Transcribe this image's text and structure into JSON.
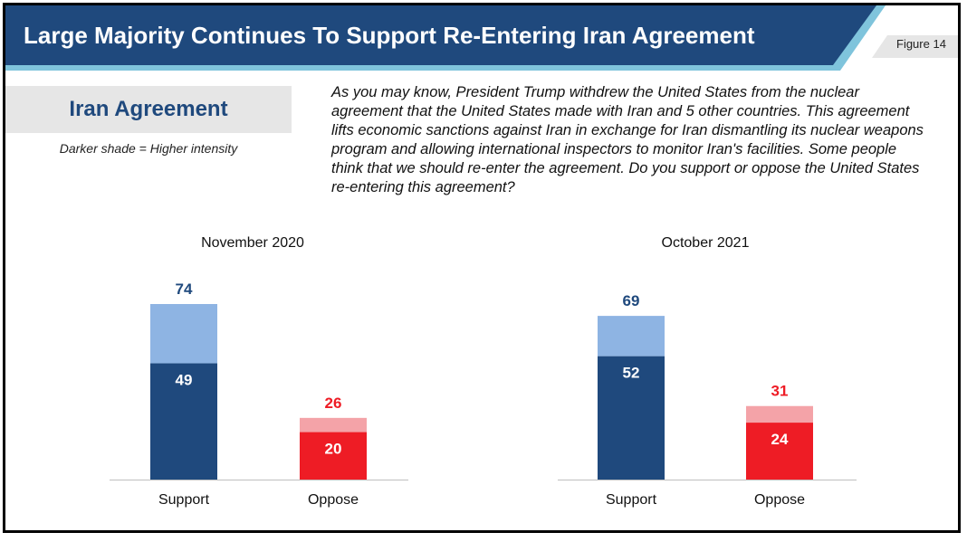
{
  "header": {
    "title": "Large Majority Continues To Support Re-Entering Iran Agreement",
    "figure_label": "Figure 14"
  },
  "sidebar": {
    "section_title": "Iran Agreement",
    "shade_note": "Darker shade = Higher intensity"
  },
  "question_text": "As you may know, President Trump withdrew the United States from the nuclear agreement that the United States made with Iran and 5 other countries. This agreement lifts economic sanctions against Iran in exchange for Iran dismantling its nuclear weapons program and allowing international inspectors to monitor Iran's facilities. Some people think that we should re-enter the agreement. Do you support or oppose the United States re-entering this agreement?",
  "colors": {
    "banner": "#1f497d",
    "banner_accent": "#7fc4dc",
    "support_strong": "#1f497d",
    "support_total": "#8eb4e3",
    "oppose_strong": "#ee1c25",
    "oppose_total": "#f4a3a8",
    "oppose_label": "#ee1c25"
  },
  "chart_data": [
    {
      "type": "bar",
      "title": "November 2020",
      "categories": [
        "Support",
        "Oppose"
      ],
      "series": [
        {
          "name": "",
          "values": [
            74,
            26
          ]
        },
        {
          "name": "",
          "values": [
            49,
            20
          ]
        }
      ],
      "ylim": [
        0,
        80
      ],
      "grid": false
    },
    {
      "type": "bar",
      "title": "October 2021",
      "categories": [
        "Support",
        "Oppose"
      ],
      "series": [
        {
          "name": "",
          "values": [
            69,
            31
          ]
        },
        {
          "name": "",
          "values": [
            52,
            24
          ]
        }
      ],
      "ylim": [
        0,
        80
      ],
      "grid": false
    }
  ]
}
